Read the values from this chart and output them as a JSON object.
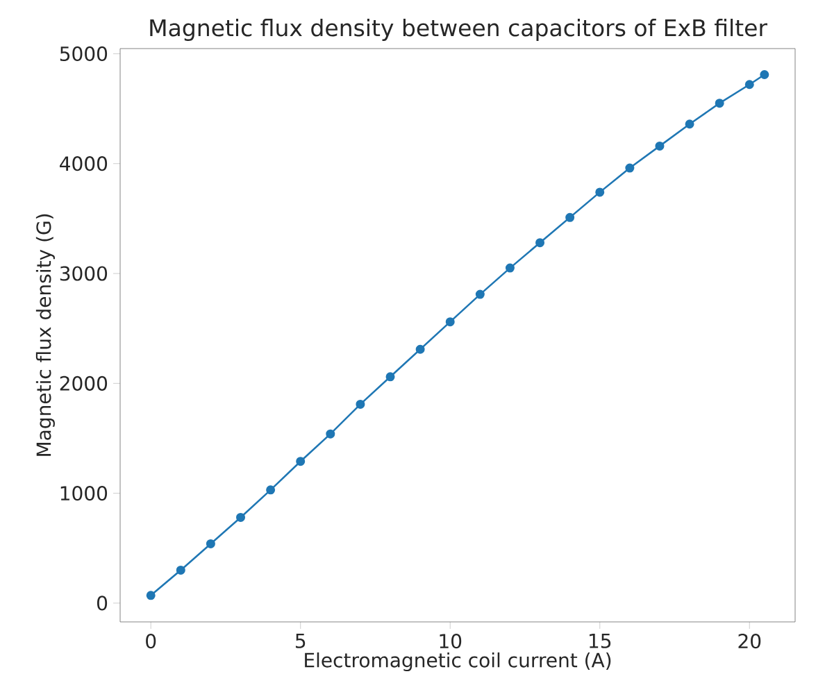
{
  "chart_data": {
    "type": "line",
    "title": "Magnetic flux density between capacitors of ExB filter",
    "xlabel": "Electromagnetic coil current (A)",
    "ylabel": "Magnetic flux density (G)",
    "x": [
      0,
      1,
      2,
      3,
      4,
      5,
      6,
      7,
      8,
      9,
      10,
      11,
      12,
      13,
      14,
      15,
      16,
      17,
      18,
      19,
      20,
      20.5
    ],
    "series": [
      {
        "color": "#1f77b4",
        "values": [
          70,
          300,
          540,
          780,
          1030,
          1290,
          1540,
          1810,
          2060,
          2310,
          2560,
          2810,
          3050,
          3280,
          3510,
          3740,
          3960,
          4160,
          4360,
          4550,
          4720,
          4810
        ]
      }
    ],
    "xlim": [
      -1.025,
      21.525
    ],
    "ylim": [
      -171,
      5047
    ],
    "xticks": [
      0,
      5,
      10,
      15,
      20
    ],
    "yticks": [
      0,
      1000,
      2000,
      3000,
      4000,
      5000
    ],
    "marker": "circle",
    "line_style": "solid"
  }
}
